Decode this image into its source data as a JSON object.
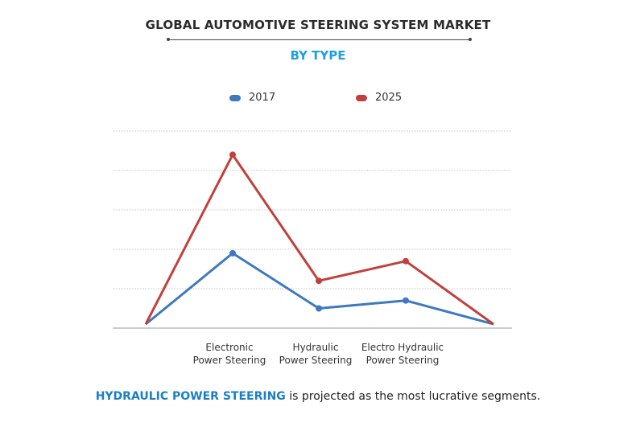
{
  "header": {
    "title": "GLOBAL AUTOMOTIVE STEERING SYSTEM MARKET",
    "subtitle": "BY TYPE"
  },
  "colors": {
    "title": "#2b2b2b",
    "subtitle": "#1ea0e0",
    "series_2017": "#3e79c0",
    "series_2025": "#c0403c",
    "gridline": "#c8c8c8",
    "footer_highlight": "#1a7fc6"
  },
  "footer": {
    "highlight": "HYDRAULIC POWER STEERING",
    "rest": " is projected as the most lucrative segments."
  },
  "chart_data": {
    "type": "line",
    "title": "GLOBAL AUTOMOTIVE STEERING SYSTEM MARKET",
    "subtitle": "BY TYPE",
    "xlabel": "",
    "ylabel": "",
    "ylim": [
      0,
      5
    ],
    "grid": true,
    "legend_position": "top-center",
    "categories": [
      "",
      "Electronic\nPower Steering",
      "Hydraulic\nPower Steering",
      "Electro Hydraulic\nPower Steering",
      ""
    ],
    "category_labels": [
      [
        "Electronic",
        "Power Steering"
      ],
      [
        "Hydraulic",
        "Power Steering"
      ],
      [
        "Electro Hydraulic",
        "Power Steering"
      ]
    ],
    "series": [
      {
        "name": "2017",
        "values": [
          0.1,
          1.9,
          0.5,
          0.7,
          0.1
        ],
        "color": "#3e79c0"
      },
      {
        "name": "2025",
        "values": [
          0.1,
          4.4,
          1.2,
          1.7,
          0.1
        ],
        "color": "#c0403c"
      }
    ]
  }
}
